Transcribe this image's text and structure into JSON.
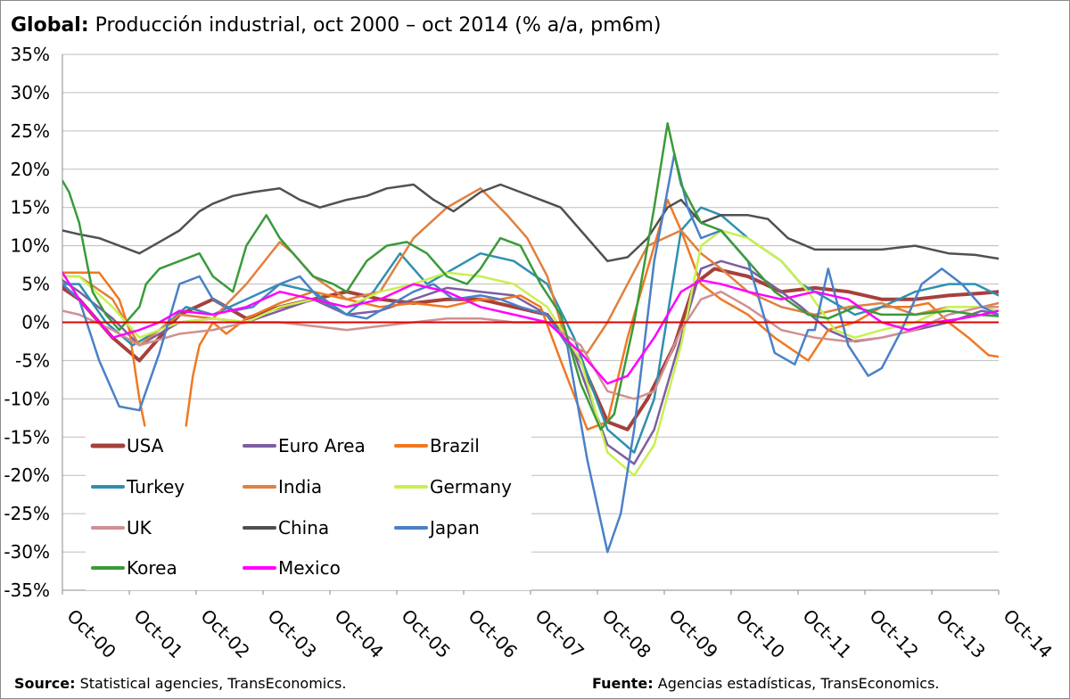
{
  "title": {
    "bold": "Global:",
    "text": "Producción industrial, oct 2000 – oct 2014 (% a/a, pm6m)"
  },
  "footer": {
    "source_label": "Source:",
    "source_text": "Statistical agencies, TransEconomics.",
    "fuente_label": "Fuente:",
    "fuente_text": "Agencias estadísticas, TransEconomics."
  },
  "chart_data": {
    "type": "line",
    "title": "Global: Producción industrial, oct 2000 – oct 2014 (% a/a, pm6m)",
    "ylim": [
      -35,
      35
    ],
    "yticks": [
      35,
      30,
      25,
      20,
      15,
      10,
      5,
      0,
      -5,
      -10,
      -15,
      -20,
      -25,
      -30,
      -35
    ],
    "ytick_labels": [
      "35%",
      "30%",
      "25%",
      "20%",
      "15%",
      "10%",
      "5%",
      "0%",
      "-5%",
      "-10%",
      "-15%",
      "-20%",
      "-25%",
      "-30%",
      "-35%"
    ],
    "xlim": [
      2000.75,
      2014.75
    ],
    "xticks": [
      "Oct-00",
      "Oct-01",
      "Oct-02",
      "Oct-03",
      "Oct-04",
      "Oct-05",
      "Oct-06",
      "Oct-07",
      "Oct-08",
      "Oct-09",
      "Oct-10",
      "Oct-11",
      "Oct-12",
      "Oct-13",
      "Oct-14"
    ],
    "grid": {
      "horizontal": true,
      "vertical": false
    },
    "zero_line_color": "#e00000",
    "legend_position": "lower-left",
    "series": [
      {
        "name": "USA",
        "color": "#a6403c",
        "width": 4,
        "x": [
          2000.75,
          2001.0,
          2001.5,
          2001.9,
          2002.5,
          2003.0,
          2003.5,
          2004.0,
          2004.5,
          2005.0,
          2005.5,
          2006.0,
          2006.5,
          2007.0,
          2007.5,
          2008.0,
          2008.5,
          2008.9,
          2009.2,
          2009.5,
          2009.9,
          2010.2,
          2010.5,
          2011.0,
          2011.5,
          2012.0,
          2012.5,
          2013.0,
          2013.5,
          2014.0,
          2014.5,
          2014.75
        ],
        "y": [
          4.5,
          3,
          -2,
          -5,
          1,
          3,
          0.5,
          2,
          3,
          4,
          3,
          2.5,
          3,
          3,
          2,
          1,
          -5,
          -13,
          -14,
          -10,
          -3,
          5,
          7,
          6,
          4,
          4.5,
          4,
          3,
          3,
          3.5,
          3.8,
          4
        ]
      },
      {
        "name": "Euro Area",
        "color": "#7d5ea0",
        "width": 2.5,
        "x": [
          2000.75,
          2001.0,
          2001.5,
          2001.9,
          2002.5,
          2003.0,
          2003.5,
          2004.0,
          2004.5,
          2005.0,
          2005.5,
          2006.0,
          2006.5,
          2007.0,
          2007.5,
          2008.0,
          2008.4,
          2008.9,
          2009.3,
          2009.6,
          2010.0,
          2010.3,
          2010.6,
          2011.0,
          2011.5,
          2011.8,
          2012.2,
          2012.6,
          2013.0,
          2013.5,
          2014.0,
          2014.5,
          2014.75
        ],
        "y": [
          5.5,
          4,
          0.5,
          -3,
          0,
          0.5,
          0,
          1.5,
          3,
          1,
          1.5,
          3,
          4.5,
          4,
          3.5,
          1,
          -4,
          -16,
          -18.5,
          -14,
          -2,
          7,
          8,
          7,
          4,
          2,
          -1,
          -2.5,
          -2,
          -1,
          0,
          1.5,
          1
        ]
      },
      {
        "name": "Brazil",
        "color": "#f07820",
        "width": 2.5,
        "x": [
          2000.75,
          2001.0,
          2001.3,
          2001.6,
          2001.75
        ],
        "y": [
          6.5,
          6.5,
          6.5,
          3,
          -1
        ]
      },
      {
        "name": "Brazil",
        "color": "#f07820",
        "width": 2.5,
        "x": [
          2001.75,
          2001.8,
          2001.9,
          2001.98
        ],
        "y": [
          -1,
          -4,
          -10,
          -13.5
        ]
      },
      {
        "name": "Brazil",
        "color": "#f07820",
        "width": 2.5,
        "x": [
          2002.6,
          2002.7,
          2002.8,
          2003.0,
          2003.2,
          2003.5,
          2004.0,
          2004.5,
          2005.0,
          2005.5,
          2006.0,
          2006.5,
          2007.0,
          2007.3,
          2007.6,
          2007.9,
          2008.2,
          2008.6,
          2008.9,
          2009.2,
          2009.5,
          2009.8,
          2010.0,
          2010.3,
          2010.6,
          2011.0,
          2011.4,
          2011.9,
          2012.2,
          2012.6,
          2013.0,
          2013.4,
          2013.7,
          2014.0,
          2014.3,
          2014.6,
          2014.75
        ],
        "y": [
          -13.5,
          -7,
          -3,
          0,
          -1.5,
          0.5,
          2.5,
          4,
          3,
          2,
          2.5,
          2,
          3,
          3,
          3.5,
          2,
          -5,
          -14,
          -13,
          -2,
          7,
          16,
          12,
          5,
          3,
          1,
          -2,
          -5,
          -1,
          0,
          2,
          2,
          2.5,
          0,
          -2,
          -4.3,
          -4.5
        ]
      },
      {
        "name": "Turkey",
        "color": "#2e90b0",
        "width": 2.5,
        "x": [
          2000.75,
          2001.0,
          2001.4,
          2001.8,
          2002.2,
          2002.6,
          2003.0,
          2003.5,
          2004.0,
          2004.5,
          2005.0,
          2005.4,
          2005.8,
          2006.2,
          2006.6,
          2007.0,
          2007.5,
          2008.0,
          2008.4,
          2008.9,
          2009.3,
          2009.6,
          2010.0,
          2010.3,
          2010.6,
          2011.0,
          2011.5,
          2011.8,
          2012.2,
          2012.6,
          2013.0,
          2013.5,
          2014.0,
          2014.4,
          2014.75
        ],
        "y": [
          5,
          5,
          0,
          -3,
          -1,
          2,
          1,
          3,
          5,
          4,
          1,
          4,
          9,
          5,
          7,
          9,
          8,
          5,
          -2,
          -14,
          -17,
          -10,
          12,
          15,
          14,
          11,
          8,
          5,
          3,
          1,
          2,
          4,
          5,
          5,
          3.5
        ]
      },
      {
        "name": "India",
        "color": "#e08040",
        "width": 2.5,
        "x": [
          2000.75,
          2001.0,
          2001.5,
          2001.9,
          2002.5,
          2003.0,
          2003.5,
          2004.0,
          2004.2,
          2004.5,
          2005.0,
          2005.5,
          2006.0,
          2006.5,
          2007.0,
          2007.4,
          2007.7,
          2008.0,
          2008.3,
          2008.6,
          2008.9,
          2009.2,
          2009.5,
          2010.0,
          2010.3,
          2010.6,
          2011.0,
          2011.5,
          2012.0,
          2012.5,
          2013.0,
          2013.5,
          2014.0,
          2014.5,
          2014.75
        ],
        "y": [
          6,
          6,
          3,
          -3,
          1,
          0.5,
          5,
          10.5,
          9,
          6,
          3,
          4,
          11,
          15,
          17.5,
          14,
          11,
          6,
          -3,
          -4,
          0,
          5,
          10,
          12,
          9,
          7,
          4,
          2,
          1,
          2,
          2.5,
          1,
          2,
          2,
          2.5
        ]
      },
      {
        "name": "Germany",
        "color": "#c8f050",
        "width": 2.5,
        "x": [
          2000.75,
          2001.0,
          2001.5,
          2001.9,
          2002.5,
          2003.0,
          2003.5,
          2004.0,
          2004.5,
          2005.0,
          2005.5,
          2006.0,
          2006.5,
          2007.0,
          2007.5,
          2008.0,
          2008.5,
          2008.9,
          2009.3,
          2009.6,
          2010.0,
          2010.3,
          2010.6,
          2011.0,
          2011.5,
          2011.9,
          2012.3,
          2012.6,
          2013.0,
          2013.5,
          2014.0,
          2014.5,
          2014.75
        ],
        "y": [
          6,
          6,
          2,
          -2,
          0,
          0.5,
          0,
          2,
          3,
          2,
          4,
          5,
          6.5,
          6,
          5,
          2,
          -5,
          -17,
          -20,
          -16,
          -3,
          10,
          12,
          11,
          8,
          4,
          -1,
          -2,
          -1,
          0,
          2,
          2,
          1.5
        ]
      },
      {
        "name": "UK",
        "color": "#d09090",
        "width": 2.5,
        "x": [
          2000.75,
          2001.0,
          2001.5,
          2001.9,
          2002.5,
          2003.0,
          2003.5,
          2004.0,
          2004.5,
          2005.0,
          2005.5,
          2006.0,
          2006.5,
          2007.0,
          2007.5,
          2008.0,
          2008.5,
          2008.9,
          2009.3,
          2009.6,
          2010.0,
          2010.3,
          2010.6,
          2011.0,
          2011.5,
          2012.0,
          2012.5,
          2013.0,
          2013.5,
          2014.0,
          2014.5,
          2014.75
        ],
        "y": [
          1.5,
          1,
          -1,
          -3,
          -1.5,
          -1,
          0,
          0,
          -0.5,
          -1,
          -0.5,
          0,
          0.5,
          0.5,
          0,
          0,
          -3,
          -9,
          -10,
          -9,
          -1,
          3,
          4,
          2,
          -1,
          -2,
          -2.5,
          -2,
          -1,
          1,
          2,
          2
        ]
      },
      {
        "name": "China",
        "color": "#505050",
        "width": 2.5,
        "x": [
          2000.75,
          2001.0,
          2001.3,
          2001.6,
          2001.9,
          2002.2,
          2002.5,
          2002.8,
          2003.0,
          2003.3,
          2003.6,
          2004.0,
          2004.3,
          2004.6,
          2005.0,
          2005.3,
          2005.6,
          2006.0,
          2006.3,
          2006.6,
          2007.0,
          2007.3,
          2007.6,
          2007.9,
          2008.2,
          2008.5,
          2008.9,
          2009.2,
          2009.5,
          2009.8,
          2010.0,
          2010.3,
          2010.6,
          2011.0,
          2011.3,
          2011.6,
          2012.0,
          2012.5,
          2013.0,
          2013.5,
          2014.0,
          2014.4,
          2014.75
        ],
        "y": [
          12,
          11.5,
          11,
          10,
          9,
          10.5,
          12,
          14.5,
          15.5,
          16.5,
          17,
          17.5,
          16,
          15,
          16,
          16.5,
          17.5,
          18,
          16,
          14.5,
          17,
          18,
          17,
          16,
          15,
          12,
          8,
          8.5,
          11,
          15,
          16,
          13,
          14,
          14,
          13.5,
          11,
          9.5,
          9.5,
          9.5,
          10,
          9,
          8.8,
          8.3
        ]
      },
      {
        "name": "Japan",
        "color": "#4a80c8",
        "width": 2.5,
        "x": [
          2000.75,
          2001.0,
          2001.3,
          2001.6,
          2001.9,
          2002.2,
          2002.5,
          2002.8,
          2003.0,
          2003.3,
          2003.6,
          2004.0,
          2004.3,
          2004.6,
          2005.0,
          2005.3,
          2005.6,
          2006.0,
          2006.3,
          2006.6,
          2007.0,
          2007.3,
          2007.6,
          2008.0,
          2008.3,
          2008.6,
          2008.9,
          2009.1,
          2009.3,
          2009.6,
          2009.9,
          2010.1,
          2010.3,
          2010.6,
          2011.0,
          2011.2,
          2011.4,
          2011.7,
          2011.9,
          2012.0,
          2012.2,
          2012.5,
          2012.8,
          2013.0,
          2013.3,
          2013.6,
          2013.9,
          2014.2,
          2014.5,
          2014.75
        ],
        "y": [
          5,
          3,
          -5,
          -11,
          -11.5,
          -4,
          5,
          6,
          3,
          1.5,
          2,
          5,
          6,
          3,
          1,
          0.5,
          2,
          4,
          5,
          3,
          3.5,
          3,
          2,
          1,
          -3,
          -18,
          -30,
          -25,
          -14,
          8,
          22,
          15,
          11,
          12,
          8,
          2,
          -4,
          -5.5,
          -1,
          -1,
          7,
          -3,
          -7,
          -6,
          -1,
          5,
          7,
          5,
          2,
          1
        ]
      },
      {
        "name": "Korea",
        "color": "#3a9a3a",
        "width": 2.5,
        "x": [
          2000.75,
          2000.85,
          2001.0,
          2001.2,
          2001.4,
          2001.6,
          2001.9,
          2002.0,
          2002.2,
          2002.5,
          2002.8,
          2003.0,
          2003.3,
          2003.5,
          2003.8,
          2004.0,
          2004.3,
          2004.5,
          2004.8,
          2005.0,
          2005.3,
          2005.6,
          2005.9,
          2006.2,
          2006.5,
          2006.8,
          2007.0,
          2007.3,
          2007.6,
          2007.9,
          2008.2,
          2008.5,
          2008.8,
          2009.0,
          2009.3,
          2009.6,
          2009.8,
          2010.0,
          2010.3,
          2010.6,
          2011.0,
          2011.4,
          2011.9,
          2012.2,
          2012.6,
          2013.0,
          2013.5,
          2014.0,
          2014.4,
          2014.75
        ],
        "y": [
          18.5,
          17,
          13,
          4,
          1,
          -1,
          2,
          5,
          7,
          8,
          9,
          6,
          4,
          10,
          14,
          11,
          8,
          6,
          5,
          4,
          8,
          10,
          10.5,
          9,
          6,
          5,
          7,
          11,
          10,
          5,
          1,
          -8,
          -14,
          -12,
          0,
          15,
          26,
          18,
          13,
          12,
          8,
          4,
          1,
          0.5,
          2,
          1,
          1,
          1.5,
          1,
          0.8
        ]
      },
      {
        "name": "Mexico",
        "color": "#ff00ff",
        "width": 2.5,
        "x": [
          2000.75,
          2001.0,
          2001.5,
          2001.9,
          2002.2,
          2002.5,
          2003.0,
          2003.5,
          2004.0,
          2004.5,
          2005.0,
          2005.5,
          2006.0,
          2006.5,
          2007.0,
          2007.5,
          2008.0,
          2008.5,
          2008.9,
          2009.2,
          2009.6,
          2010.0,
          2010.3,
          2010.6,
          2011.0,
          2011.5,
          2012.0,
          2012.5,
          2013.0,
          2013.4,
          2013.8,
          2014.2,
          2014.5,
          2014.75
        ],
        "y": [
          6.5,
          3,
          -2,
          -1,
          0,
          1.5,
          1,
          2,
          4,
          3,
          2,
          3,
          5,
          4,
          2,
          1,
          0,
          -4,
          -8,
          -7,
          -2,
          4,
          5.5,
          5,
          4,
          3,
          4,
          3,
          0,
          -1,
          0,
          0.5,
          1,
          1.5
        ]
      }
    ],
    "legend": [
      {
        "label": "USA",
        "color": "#a6403c",
        "width": 4
      },
      {
        "label": "Euro Area",
        "color": "#7d5ea0",
        "width": 3
      },
      {
        "label": "Brazil",
        "color": "#f07820",
        "width": 3
      },
      {
        "label": "Turkey",
        "color": "#2e90b0",
        "width": 3
      },
      {
        "label": "India",
        "color": "#e08040",
        "width": 3
      },
      {
        "label": "Germany",
        "color": "#c8f050",
        "width": 3
      },
      {
        "label": "UK",
        "color": "#d09090",
        "width": 3
      },
      {
        "label": "China",
        "color": "#505050",
        "width": 3
      },
      {
        "label": "Japan",
        "color": "#4a80c8",
        "width": 3
      },
      {
        "label": "Korea",
        "color": "#3a9a3a",
        "width": 3
      },
      {
        "label": "Mexico",
        "color": "#ff00ff",
        "width": 3
      }
    ]
  }
}
